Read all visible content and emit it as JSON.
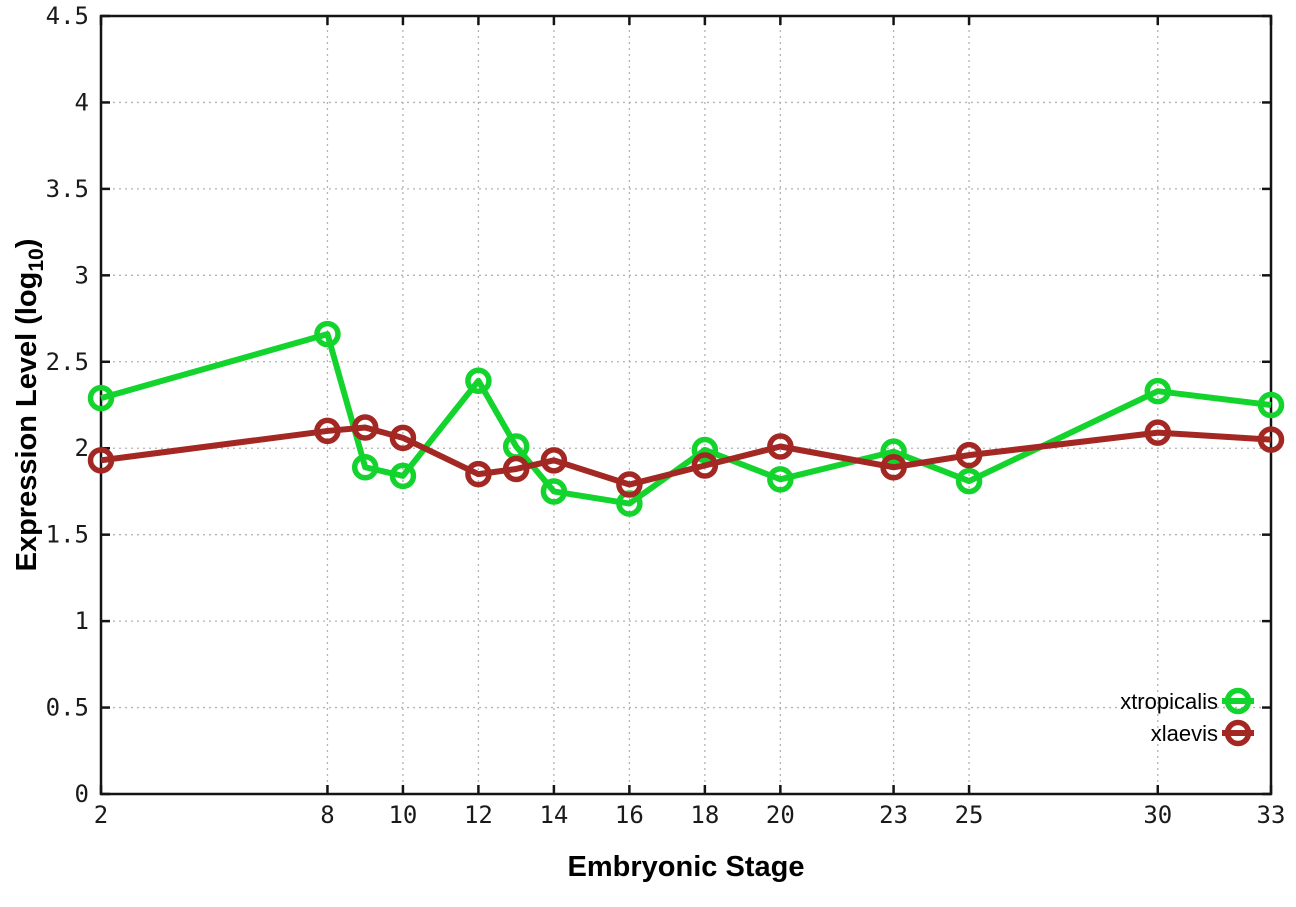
{
  "figure": {
    "background": "#ffffff",
    "border_color": "#141414",
    "grid_color": "#b3b3b3",
    "tick_text_color": "#1a1a1a"
  },
  "chart_data": {
    "type": "line",
    "title": "",
    "xlabel": "Embryonic Stage",
    "ylabel": "Expression Level (log10)",
    "ylabel_parts": {
      "base": "Expression Level (log",
      "sub": "10",
      "close": ")"
    },
    "xlim": [
      2,
      33
    ],
    "ylim": [
      0,
      4.5
    ],
    "grid": true,
    "legend_position": "inside-bottom-right",
    "x_ticks": [
      2,
      8,
      10,
      12,
      14,
      16,
      18,
      20,
      23,
      25,
      30,
      33
    ],
    "x_tick_labels": [
      "2",
      "8",
      "10",
      "12",
      "14",
      "16",
      "18",
      "20",
      "23",
      "25",
      "30",
      "33"
    ],
    "y_ticks": [
      0,
      0.5,
      1,
      1.5,
      2,
      2.5,
      3,
      3.5,
      4,
      4.5
    ],
    "y_tick_labels": [
      "0",
      "0.5",
      "1",
      "1.5",
      "2",
      "2.5",
      "3",
      "3.5",
      "4",
      "4.5"
    ],
    "x": [
      2,
      8,
      9,
      10,
      12,
      13,
      14,
      16,
      18,
      20,
      23,
      25,
      30,
      33
    ],
    "series": [
      {
        "name": "xtropicalis",
        "color": "#12d42c",
        "marker": "open-circle",
        "values": [
          2.29,
          2.66,
          1.89,
          1.84,
          2.39,
          2.01,
          1.75,
          1.68,
          1.99,
          1.82,
          1.98,
          1.81,
          2.33,
          2.25
        ]
      },
      {
        "name": "xlaevis",
        "color": "#a32823",
        "marker": "open-circle",
        "values": [
          1.93,
          2.1,
          2.12,
          2.06,
          1.85,
          1.88,
          1.93,
          1.79,
          1.9,
          2.01,
          1.89,
          1.96,
          2.09,
          2.05
        ]
      }
    ]
  }
}
